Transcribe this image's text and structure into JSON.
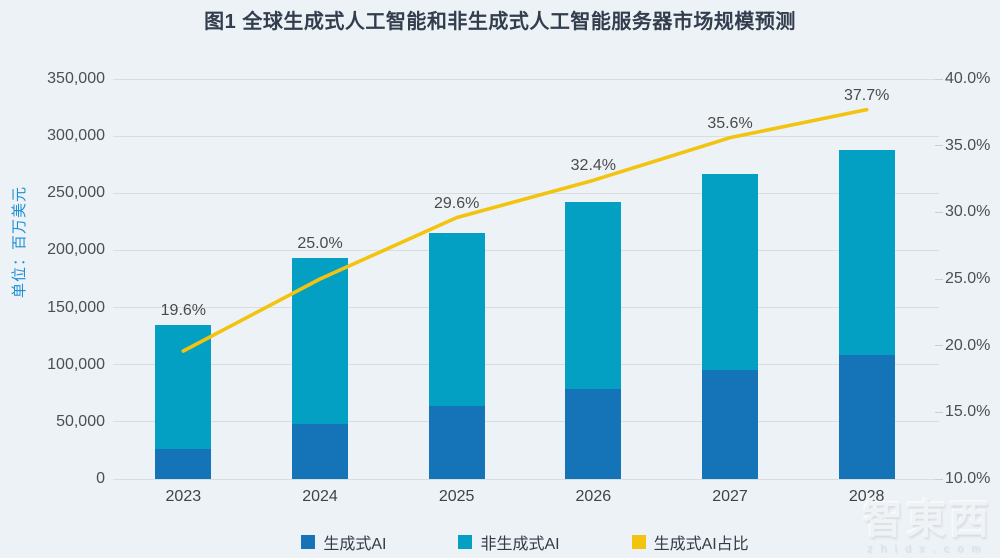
{
  "title": "图1 全球生成式人工智能和非生成式人工智能服务器市场规模预测",
  "left_axis_unit": "单位：百万美元",
  "watermark": {
    "logo": "智東西",
    "domain": "zhidx.com"
  },
  "colors": {
    "background": "#EDF2F6",
    "gridline": "#D8DDE2",
    "generative_bar": "#1574B8",
    "non_generative_bar": "#04A0C3",
    "share_line": "#F2C40F",
    "unit_label": "#1E8FD5",
    "title_text": "#323D4E"
  },
  "legend": [
    {
      "label": "生成式AI",
      "color": "#1574B8"
    },
    {
      "label": "非生成式AI",
      "color": "#04A0C3"
    },
    {
      "label": "生成式AI占比",
      "color": "#F2C40F"
    }
  ],
  "chart_data": {
    "type": "bar",
    "subtype": "stacked-bars-with-percentage-line",
    "title": "图1 全球生成式人工智能和非生成式人工智能服务器市场规模预测",
    "categories": [
      "2023",
      "2024",
      "2025",
      "2026",
      "2027",
      "2028"
    ],
    "series": [
      {
        "name": "生成式AI",
        "type": "bar",
        "stack": "total",
        "axis": "left",
        "color": "#1574B8",
        "values": [
          26500,
          48200,
          63600,
          78400,
          95000,
          108600
        ]
      },
      {
        "name": "非生成式AI",
        "type": "bar",
        "stack": "total",
        "axis": "left",
        "color": "#04A0C3",
        "values": [
          108500,
          144800,
          151400,
          163600,
          172000,
          179400
        ]
      },
      {
        "name": "生成式AI占比",
        "type": "line",
        "axis": "right",
        "color": "#F2C40F",
        "values": [
          19.6,
          25.0,
          29.6,
          32.4,
          35.6,
          37.7
        ],
        "point_labels": [
          "19.6%",
          "25.0%",
          "29.6%",
          "32.4%",
          "35.6%",
          "37.7%"
        ]
      }
    ],
    "stack_totals": [
      135000,
      193000,
      215000,
      242000,
      267000,
      288000
    ],
    "left_axis": {
      "name": "单位：百万美元",
      "min": 0,
      "max": 350000,
      "step": 50000,
      "tick_labels": [
        "0",
        "50,000",
        "100,000",
        "150,000",
        "200,000",
        "250,000",
        "300,000",
        "350,000"
      ]
    },
    "right_axis": {
      "min": 10,
      "max": 40,
      "step": 5,
      "tick_labels": [
        "10.0%",
        "15.0%",
        "20.0%",
        "25.0%",
        "30.0%",
        "35.0%",
        "40.0%"
      ]
    },
    "grid": true,
    "legend_position": "bottom"
  }
}
